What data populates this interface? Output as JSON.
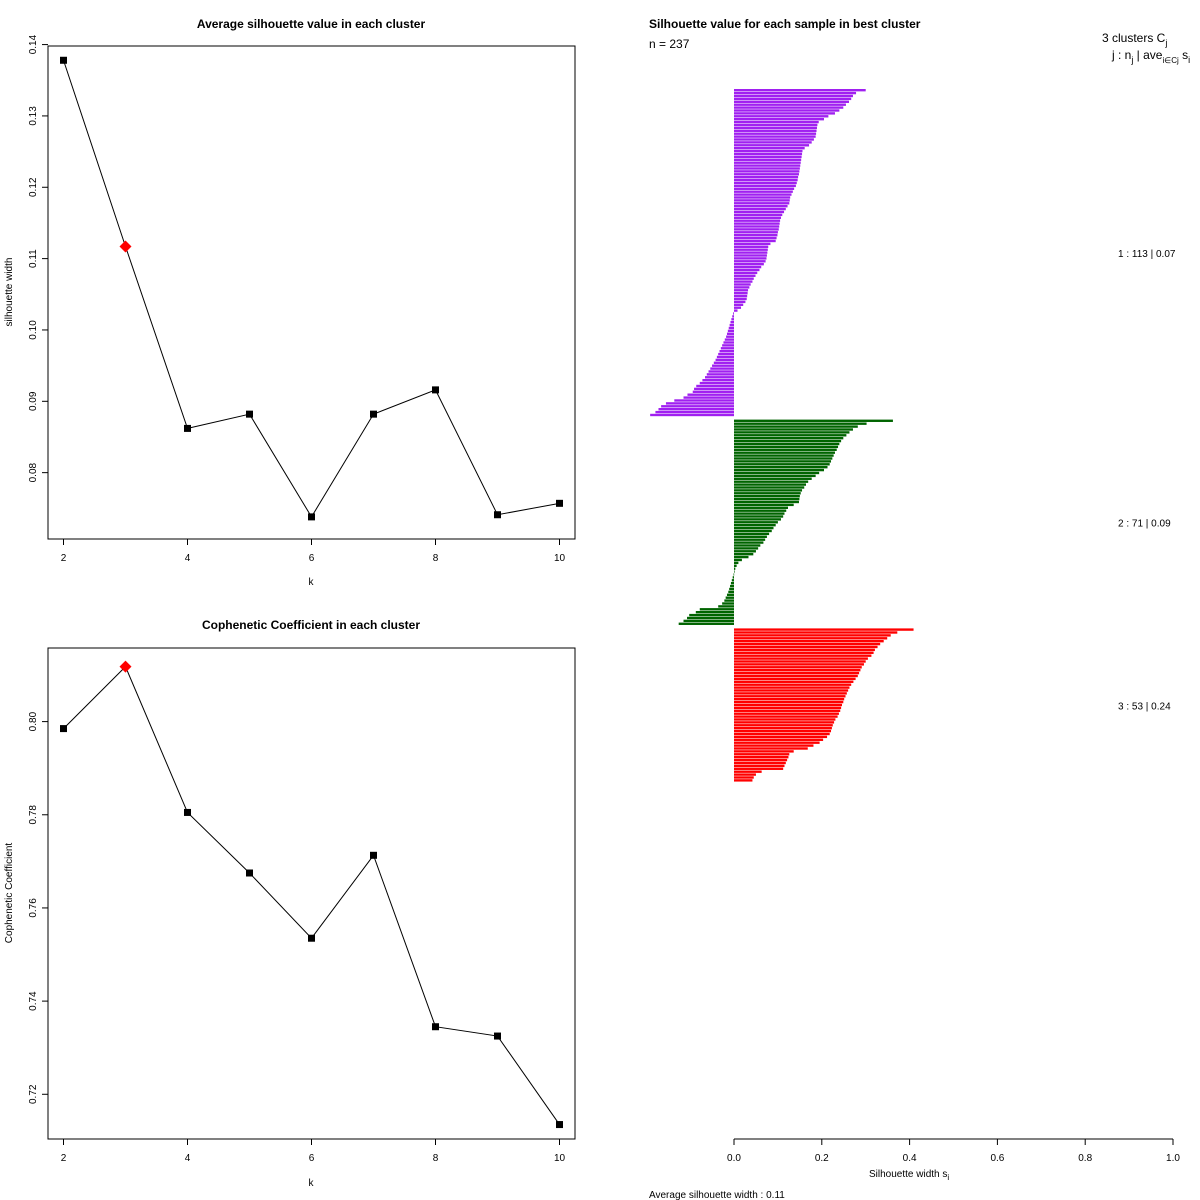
{
  "chart_data": [
    {
      "type": "line",
      "title": "Average silhouette value in each cluster",
      "xlabel": "k",
      "ylabel": "silhouette width",
      "x": [
        2,
        3,
        4,
        5,
        6,
        7,
        8,
        9,
        10
      ],
      "values": [
        0.1378,
        0.1117,
        0.0862,
        0.0882,
        0.0738,
        0.0882,
        0.0916,
        0.0741,
        0.0757
      ],
      "highlight_index": 1,
      "highlight_color": "#ff0000",
      "line_color": "#000000",
      "xlim": [
        1.75,
        10.25
      ],
      "ylim": [
        0.0707,
        0.1398
      ],
      "xticks": [
        "2",
        "4",
        "6",
        "8",
        "10"
      ],
      "xtick_values": [
        2,
        4,
        6,
        8,
        10
      ],
      "yticks": [
        "0.08",
        "0.09",
        "0.10",
        "0.11",
        "0.12",
        "0.13",
        "0.14"
      ],
      "ytick_values": [
        0.08,
        0.09,
        0.1,
        0.11,
        0.12,
        0.13,
        0.14
      ]
    },
    {
      "type": "line",
      "title": "Cophenetic Coefficient in each cluster",
      "xlabel": "k",
      "ylabel": "Cophenetic Coefficient",
      "x": [
        2,
        3,
        4,
        5,
        6,
        7,
        8,
        9,
        10
      ],
      "values": [
        0.7985,
        0.8118,
        0.7805,
        0.7675,
        0.7535,
        0.7713,
        0.7345,
        0.7325,
        0.7135
      ],
      "highlight_index": 1,
      "highlight_color": "#ff0000",
      "line_color": "#000000",
      "xlim": [
        1.75,
        10.25
      ],
      "ylim": [
        0.7104,
        0.8158
      ],
      "xticks": [
        "2",
        "4",
        "6",
        "8",
        "10"
      ],
      "xtick_values": [
        2,
        4,
        6,
        8,
        10
      ],
      "yticks": [
        "0.72",
        "0.74",
        "0.76",
        "0.78",
        "0.80"
      ],
      "ytick_values": [
        0.72,
        0.74,
        0.76,
        0.78,
        0.8
      ]
    },
    {
      "type": "bar",
      "orientation": "horizontal",
      "title": "Silhouette value for each sample in best cluster",
      "n_label": "n = 237",
      "header_line1": "3  clusters  C",
      "header_sub1": "j",
      "header_line2": "j :  n",
      "header_sub2": "j",
      "header_line2b": " | ave",
      "header_sub3": "i∈Cj",
      "header_line2c": " s",
      "header_sub4": "i",
      "xlabel": "Silhouette width s",
      "xlabel_sub": "i",
      "xlim": [
        0,
        1
      ],
      "xticks": [
        "0.0",
        "0.2",
        "0.4",
        "0.6",
        "0.8",
        "1.0"
      ],
      "xtick_values": [
        0,
        0.2,
        0.4,
        0.6,
        0.8,
        1.0
      ],
      "footer": "Average silhouette width :  0.11",
      "clusters": [
        {
          "id": 1,
          "n": 113,
          "avg": "0.07",
          "label": "1 :   113  |  0.07",
          "color": "#a020f0",
          "values": [
            0.3,
            0.278,
            0.271,
            0.267,
            0.262,
            0.255,
            0.249,
            0.24,
            0.23,
            0.215,
            0.205,
            0.193,
            0.19,
            0.189,
            0.188,
            0.187,
            0.186,
            0.182,
            0.177,
            0.171,
            0.161,
            0.156,
            0.155,
            0.154,
            0.153,
            0.152,
            0.151,
            0.15,
            0.149,
            0.148,
            0.146,
            0.145,
            0.143,
            0.141,
            0.137,
            0.134,
            0.131,
            0.128,
            0.127,
            0.126,
            0.122,
            0.118,
            0.114,
            0.11,
            0.107,
            0.105,
            0.104,
            0.103,
            0.102,
            0.1,
            0.099,
            0.097,
            0.095,
            0.083,
            0.078,
            0.077,
            0.076,
            0.075,
            0.074,
            0.072,
            0.068,
            0.062,
            0.058,
            0.053,
            0.049,
            0.045,
            0.042,
            0.038,
            0.035,
            0.032,
            0.031,
            0.03,
            0.029,
            0.026,
            0.021,
            0.016,
            0.008,
            -0.002,
            -0.004,
            -0.006,
            -0.008,
            -0.01,
            -0.012,
            -0.014,
            -0.016,
            -0.018,
            -0.021,
            -0.024,
            -0.027,
            -0.03,
            -0.033,
            -0.036,
            -0.039,
            -0.042,
            -0.046,
            -0.05,
            -0.054,
            -0.058,
            -0.062,
            -0.066,
            -0.072,
            -0.078,
            -0.086,
            -0.091,
            -0.094,
            -0.106,
            -0.115,
            -0.136,
            -0.155,
            -0.166,
            -0.172,
            -0.179,
            -0.191
          ]
        },
        {
          "id": 2,
          "n": 71,
          "avg": "0.09",
          "label": "2 :   71  |  0.09",
          "color": "#006400",
          "values": [
            0.362,
            0.302,
            0.282,
            0.271,
            0.263,
            0.256,
            0.249,
            0.244,
            0.24,
            0.237,
            0.234,
            0.23,
            0.227,
            0.224,
            0.221,
            0.218,
            0.213,
            0.205,
            0.194,
            0.186,
            0.177,
            0.169,
            0.164,
            0.16,
            0.155,
            0.152,
            0.15,
            0.149,
            0.148,
            0.136,
            0.123,
            0.119,
            0.115,
            0.112,
            0.107,
            0.1,
            0.095,
            0.09,
            0.086,
            0.08,
            0.075,
            0.071,
            0.067,
            0.06,
            0.055,
            0.05,
            0.044,
            0.033,
            0.018,
            0.01,
            0.006,
            0.003,
            0.001,
            -0.001,
            -0.003,
            -0.005,
            -0.007,
            -0.009,
            -0.011,
            -0.013,
            -0.016,
            -0.019,
            -0.022,
            -0.027,
            -0.036,
            -0.078,
            -0.087,
            -0.102,
            -0.107,
            -0.115,
            -0.126
          ]
        },
        {
          "id": 3,
          "n": 53,
          "avg": "0.24",
          "label": "3 :   53  |  0.24",
          "color": "#ff0000",
          "values": [
            0.409,
            0.372,
            0.357,
            0.349,
            0.341,
            0.333,
            0.327,
            0.321,
            0.318,
            0.313,
            0.305,
            0.3,
            0.296,
            0.291,
            0.288,
            0.285,
            0.282,
            0.277,
            0.272,
            0.267,
            0.263,
            0.26,
            0.257,
            0.254,
            0.251,
            0.249,
            0.246,
            0.244,
            0.242,
            0.239,
            0.236,
            0.231,
            0.228,
            0.225,
            0.223,
            0.221,
            0.218,
            0.212,
            0.203,
            0.195,
            0.181,
            0.168,
            0.136,
            0.126,
            0.124,
            0.121,
            0.118,
            0.115,
            0.112,
            0.063,
            0.05,
            0.045,
            0.042
          ]
        }
      ]
    }
  ]
}
